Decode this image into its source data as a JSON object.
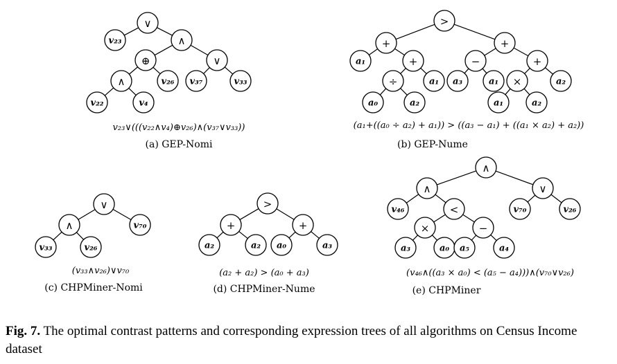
{
  "trees": [
    {
      "id": "gep-nomi",
      "subcaption": "(a) GEP-Nomi",
      "expression": "v₂₃∨(((v₂₂∧v₄)⊕v₂₆)∧(v₃₇∨v₃₃))",
      "nodes": [
        {
          "id": "a0",
          "label": "∨"
        },
        {
          "id": "a1",
          "label": "v₂₃",
          "leaf": true
        },
        {
          "id": "a2",
          "label": "∧"
        },
        {
          "id": "a3",
          "label": "⊕"
        },
        {
          "id": "a4",
          "label": "∨"
        },
        {
          "id": "a5",
          "label": "∧"
        },
        {
          "id": "a6",
          "label": "v₂₆",
          "leaf": true
        },
        {
          "id": "a7",
          "label": "v₃₇",
          "leaf": true
        },
        {
          "id": "a8",
          "label": "v₃₃",
          "leaf": true
        },
        {
          "id": "a9",
          "label": "v₂₂",
          "leaf": true
        },
        {
          "id": "a10",
          "label": "v₄",
          "leaf": true
        }
      ],
      "edges": [
        [
          "a0",
          "a1"
        ],
        [
          "a0",
          "a2"
        ],
        [
          "a2",
          "a3"
        ],
        [
          "a2",
          "a4"
        ],
        [
          "a3",
          "a5"
        ],
        [
          "a3",
          "a6"
        ],
        [
          "a4",
          "a7"
        ],
        [
          "a4",
          "a8"
        ],
        [
          "a5",
          "a9"
        ],
        [
          "a5",
          "a10"
        ]
      ]
    },
    {
      "id": "gep-nume",
      "subcaption": "(b) GEP-Nume",
      "expression": "(a₁+((a₀ ÷ a₂) + a₁)) > ((a₃ − a₁) + ((a₁ × a₂) + a₂))",
      "nodes": [
        {
          "id": "b0",
          "label": ">"
        },
        {
          "id": "b1",
          "label": "+"
        },
        {
          "id": "b2",
          "label": "+"
        },
        {
          "id": "b3",
          "label": "a₁",
          "leaf": true
        },
        {
          "id": "b4",
          "label": "+"
        },
        {
          "id": "b5",
          "label": "÷"
        },
        {
          "id": "b6",
          "label": "a₁",
          "leaf": true
        },
        {
          "id": "b7",
          "label": "a₀",
          "leaf": true
        },
        {
          "id": "b8",
          "label": "a₂",
          "leaf": true
        },
        {
          "id": "b9",
          "label": "−"
        },
        {
          "id": "b10",
          "label": "+"
        },
        {
          "id": "b11",
          "label": "a₃",
          "leaf": true
        },
        {
          "id": "b12",
          "label": "a₁",
          "leaf": true
        },
        {
          "id": "b13",
          "label": "×"
        },
        {
          "id": "b14",
          "label": "a₂",
          "leaf": true
        },
        {
          "id": "b15",
          "label": "a₁",
          "leaf": true
        },
        {
          "id": "b16",
          "label": "a₂",
          "leaf": true
        }
      ],
      "edges": [
        [
          "b0",
          "b1"
        ],
        [
          "b0",
          "b2"
        ],
        [
          "b1",
          "b3"
        ],
        [
          "b1",
          "b4"
        ],
        [
          "b4",
          "b5"
        ],
        [
          "b4",
          "b6"
        ],
        [
          "b5",
          "b7"
        ],
        [
          "b5",
          "b8"
        ],
        [
          "b2",
          "b9"
        ],
        [
          "b2",
          "b10"
        ],
        [
          "b9",
          "b11"
        ],
        [
          "b9",
          "b12"
        ],
        [
          "b10",
          "b13"
        ],
        [
          "b10",
          "b14"
        ],
        [
          "b13",
          "b15"
        ],
        [
          "b13",
          "b16"
        ]
      ]
    },
    {
      "id": "chpminer-nomi",
      "subcaption": "(c) CHPMiner-Nomi",
      "expression": "(v₃₃∧v₂₆)∨v₇₀",
      "nodes": [
        {
          "id": "c0",
          "label": "∨"
        },
        {
          "id": "c1",
          "label": "∧"
        },
        {
          "id": "c2",
          "label": "v₇₀",
          "leaf": true
        },
        {
          "id": "c3",
          "label": "v₃₃",
          "leaf": true
        },
        {
          "id": "c4",
          "label": "v₂₆",
          "leaf": true
        }
      ],
      "edges": [
        [
          "c0",
          "c1"
        ],
        [
          "c0",
          "c2"
        ],
        [
          "c1",
          "c3"
        ],
        [
          "c1",
          "c4"
        ]
      ]
    },
    {
      "id": "chpminer-nume",
      "subcaption": "(d) CHPMiner-Nume",
      "expression": "(a₂ + a₂) > (a₀ + a₃)",
      "nodes": [
        {
          "id": "d0",
          "label": ">"
        },
        {
          "id": "d1",
          "label": "+"
        },
        {
          "id": "d2",
          "label": "+"
        },
        {
          "id": "d3",
          "label": "a₂",
          "leaf": true
        },
        {
          "id": "d4",
          "label": "a₂",
          "leaf": true
        },
        {
          "id": "d5",
          "label": "a₀",
          "leaf": true
        },
        {
          "id": "d6",
          "label": "a₃",
          "leaf": true
        }
      ],
      "edges": [
        [
          "d0",
          "d1"
        ],
        [
          "d0",
          "d2"
        ],
        [
          "d1",
          "d3"
        ],
        [
          "d1",
          "d4"
        ],
        [
          "d2",
          "d5"
        ],
        [
          "d2",
          "d6"
        ]
      ]
    },
    {
      "id": "chpminer",
      "subcaption": "(e) CHPMiner",
      "expression": "(v₄₆∧((a₃ × a₀) < (a₅ − a₄)))∧(v₇₀∨v₂₆)",
      "nodes": [
        {
          "id": "e0",
          "label": "∧"
        },
        {
          "id": "e1",
          "label": "∧"
        },
        {
          "id": "e2",
          "label": "∨"
        },
        {
          "id": "e3",
          "label": "v₄₆",
          "leaf": true
        },
        {
          "id": "e4",
          "label": "<"
        },
        {
          "id": "e5",
          "label": "v₇₀",
          "leaf": true
        },
        {
          "id": "e6",
          "label": "v₂₆",
          "leaf": true
        },
        {
          "id": "e7",
          "label": "×"
        },
        {
          "id": "e8",
          "label": "−"
        },
        {
          "id": "e9",
          "label": "a₃",
          "leaf": true
        },
        {
          "id": "e10",
          "label": "a₀",
          "leaf": true
        },
        {
          "id": "e11",
          "label": "a₅",
          "leaf": true
        },
        {
          "id": "e12",
          "label": "a₄",
          "leaf": true
        }
      ],
      "edges": [
        [
          "e0",
          "e1"
        ],
        [
          "e0",
          "e2"
        ],
        [
          "e1",
          "e3"
        ],
        [
          "e1",
          "e4"
        ],
        [
          "e2",
          "e5"
        ],
        [
          "e2",
          "e6"
        ],
        [
          "e4",
          "e7"
        ],
        [
          "e4",
          "e8"
        ],
        [
          "e7",
          "e9"
        ],
        [
          "e7",
          "e10"
        ],
        [
          "e8",
          "e11"
        ],
        [
          "e8",
          "e12"
        ]
      ]
    }
  ],
  "caption": {
    "label": "Fig. 7.",
    "text": "The optimal contrast patterns and corresponding expression trees of all algorithms on Census Income dataset"
  }
}
